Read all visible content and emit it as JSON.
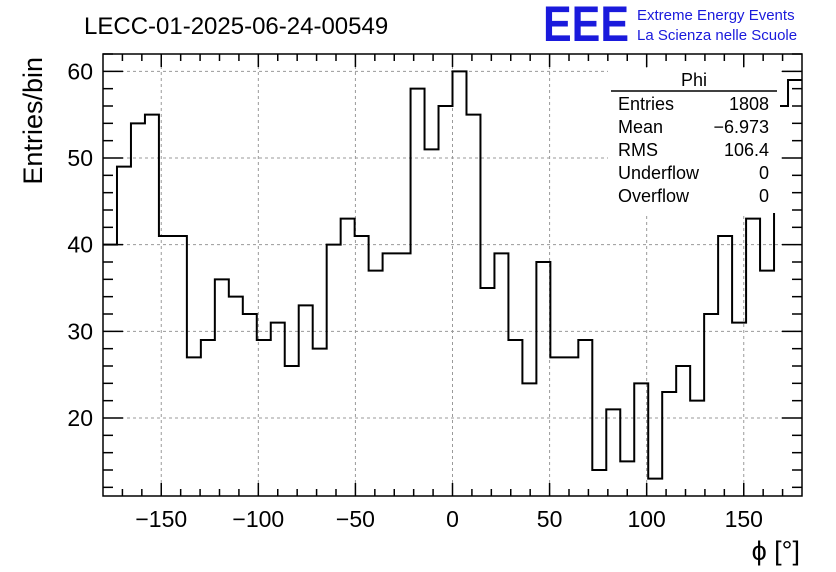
{
  "title": "LECC-01-2025-06-24-00549",
  "brand": {
    "logo_text": "EEE",
    "line1": "Extreme Energy Events",
    "line2": "La Scienza nelle Scuole",
    "color": "#1a1adc"
  },
  "stats_box": {
    "name": "Phi",
    "rows": [
      {
        "label": "Entries",
        "value": "1808"
      },
      {
        "label": "Mean",
        "value": "−6.973"
      },
      {
        "label": "RMS",
        "value": "106.4"
      },
      {
        "label": "Underflow",
        "value": "0"
      },
      {
        "label": "Overflow",
        "value": "0"
      }
    ]
  },
  "chart_data": {
    "type": "histogram",
    "xlabel": "ϕ [°]",
    "ylabel": "Entries/bin",
    "xlim": [
      -180,
      180
    ],
    "ylim": [
      11,
      62
    ],
    "xticks": [
      -150,
      -100,
      -50,
      0,
      50,
      100,
      150
    ],
    "xtick_labels": [
      "−150",
      "−100",
      "−50",
      "0",
      "50",
      "100",
      "150"
    ],
    "yticks": [
      20,
      30,
      40,
      50,
      60
    ],
    "ytick_labels": [
      "20",
      "30",
      "40",
      "50",
      "60"
    ],
    "grid": true,
    "bin_edges": [
      -180,
      -172.8,
      -165.6,
      -158.4,
      -151.2,
      -144,
      -136.8,
      -129.6,
      -122.4,
      -115.2,
      -108,
      -100.8,
      -93.6,
      -86.4,
      -79.2,
      -72,
      -64.8,
      -57.6,
      -50.4,
      -43.2,
      -36,
      -28.8,
      -21.6,
      -14.4,
      -7.2,
      0,
      7.2,
      14.4,
      21.6,
      28.8,
      36,
      43.2,
      50.4,
      57.6,
      64.8,
      72,
      79.2,
      86.4,
      93.6,
      100.8,
      108,
      115.2,
      122.4,
      129.6,
      136.8,
      144,
      151.2,
      158.4,
      165.6,
      172.8,
      180
    ],
    "values": [
      40,
      49,
      54,
      55,
      41,
      41,
      27,
      29,
      36,
      34,
      32,
      29,
      31,
      26,
      33,
      28,
      40,
      43,
      41,
      37,
      39,
      39,
      58,
      51,
      56,
      60,
      55,
      35,
      39,
      29,
      24,
      38,
      27,
      27,
      29,
      14,
      21,
      15,
      24,
      13,
      23,
      26,
      22,
      32,
      41,
      31,
      43,
      37,
      56,
      59
    ]
  }
}
